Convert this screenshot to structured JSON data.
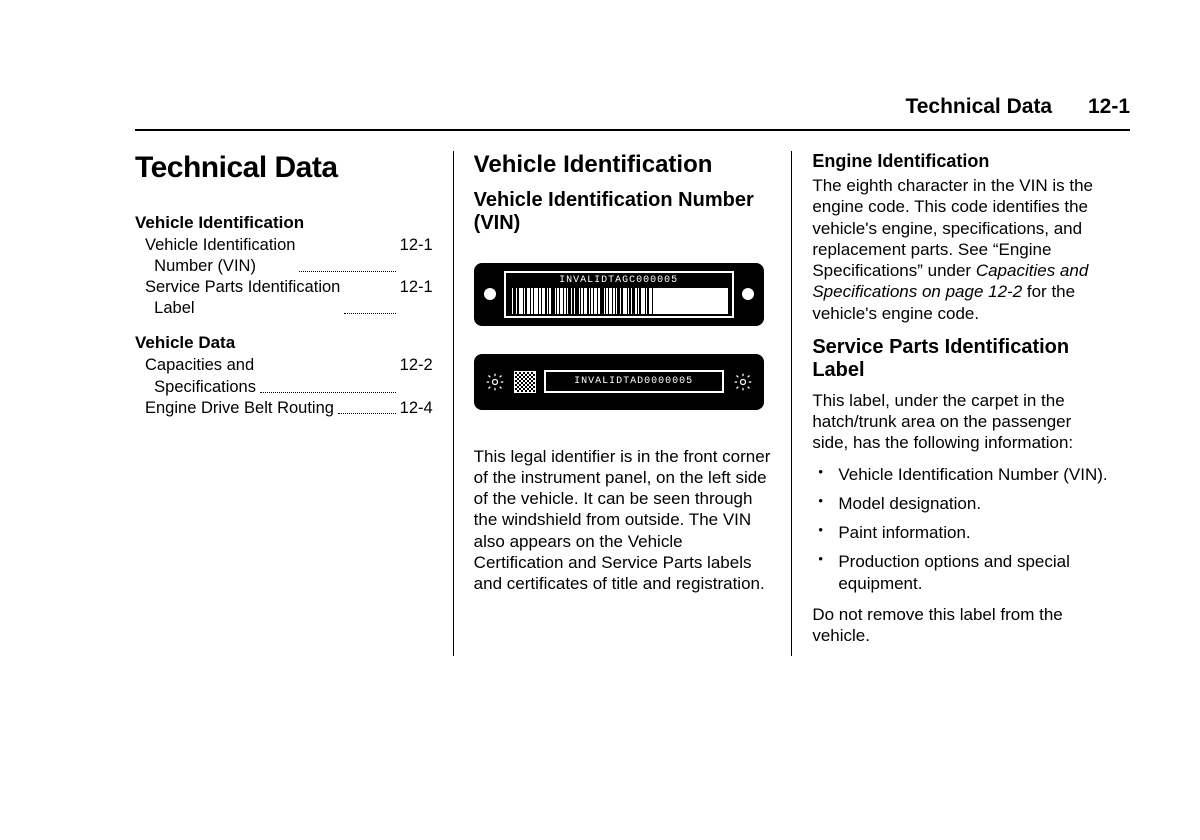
{
  "colors": {
    "text": "#000000",
    "background": "#ffffff",
    "rule": "#000000",
    "plate_bg": "#000000",
    "plate_fg": "#ffffff"
  },
  "fonts": {
    "body_family": "Arial, Helvetica, sans-serif",
    "mono_family": "Courier New, monospace",
    "h1_size_pt": 22,
    "h2_size_pt": 18,
    "h3_size_pt": 15,
    "h4_size_pt": 13.5,
    "body_size_pt": 12.5,
    "header_size_pt": 16
  },
  "header": {
    "title": "Technical Data",
    "page": "12-1"
  },
  "col1": {
    "title": "Technical Data",
    "toc": [
      {
        "head": "Vehicle Identification",
        "items": [
          {
            "label": "Vehicle Identification\n  Number (VIN)",
            "page": "12-1"
          },
          {
            "label": "Service Parts Identification\n  Label",
            "page": "12-1"
          }
        ]
      },
      {
        "head": "Vehicle Data",
        "items": [
          {
            "label": "Capacities and\n  Specifications",
            "page": "12-2"
          },
          {
            "label": "Engine Drive Belt Routing",
            "page": "12-4"
          }
        ]
      }
    ]
  },
  "col2": {
    "h2": "Vehicle Identification",
    "h3": "Vehicle Identification Number (VIN)",
    "vin_plate": {
      "text": "INVALIDTAGC000005",
      "barcode_widths": [
        2,
        1,
        3,
        1,
        2,
        4,
        1,
        1,
        2,
        3,
        1,
        2,
        1,
        4,
        1,
        2,
        1,
        3,
        2,
        1,
        1,
        2,
        4,
        1,
        1,
        2,
        1,
        3,
        1,
        2,
        1,
        1,
        3,
        1,
        2,
        1,
        4,
        1,
        1,
        2,
        1,
        3,
        2,
        1,
        1,
        2,
        1,
        3,
        1,
        2,
        4,
        1,
        1,
        2,
        1,
        3,
        1,
        2,
        1,
        1,
        3,
        1,
        2,
        4,
        1,
        1,
        2,
        1,
        3,
        2,
        1,
        1,
        2,
        4,
        1,
        1,
        2,
        3,
        1,
        2
      ]
    },
    "vin_plate2": {
      "text": "INVALIDTAD0000005"
    },
    "para": "This legal identifier is in the front corner of the instrument panel, on the left side of the vehicle. It can be seen through the windshield from outside. The VIN also appears on the Vehicle Certification and Service Parts labels and certificates of title and registration."
  },
  "col3": {
    "h4a": "Engine Identification",
    "para1_a": "The eighth character in the VIN is the engine code. This code identifies the vehicle's engine, specifications, and replacement parts. See “Engine Specifications” under ",
    "para1_ital": "Capacities and Specifications on page 12-2",
    "para1_b": " for the vehicle's engine code.",
    "h3b": "Service Parts Identification Label",
    "para2": "This label, under the carpet in the hatch/trunk area on the passenger side, has the following information:",
    "bullets": [
      "Vehicle Identification Number (VIN).",
      "Model designation.",
      "Paint information.",
      "Production options and special equipment."
    ],
    "para3": "Do not remove this label from the vehicle."
  }
}
